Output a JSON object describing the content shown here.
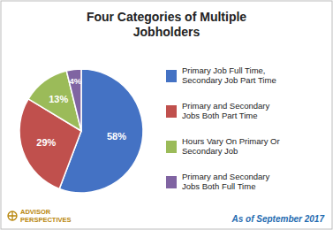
{
  "chart_data": {
    "type": "pie",
    "title": "Four Categories of Multiple\nJobholders",
    "categories": [
      "Primary Job Full Time,\nSecondary Job Part Time",
      "Primary and Secondary\nJobs Both Part Time",
      "Hours Vary On Primary Or\nSecondary Job",
      "Primary and Secondary\nJobs Both Full Time"
    ],
    "values": [
      58,
      29,
      13,
      4
    ],
    "value_labels": [
      "58%",
      "29%",
      "13%",
      "4%"
    ],
    "data_labels": true,
    "colors": [
      "#4472C4",
      "#C0504D",
      "#9BBB59",
      "#8064A2"
    ],
    "legend": "right",
    "annotations": [
      "As of September 2017",
      "ADVISOR",
      "PERSPECTIVES"
    ]
  }
}
